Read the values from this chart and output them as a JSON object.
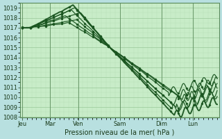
{
  "xlabel": "Pression niveau de la mer( hPa )",
  "bg_color": "#b8e0e0",
  "plot_bg_color": "#c8ecc8",
  "grid_major_color": "#98c898",
  "grid_minor_color": "#b0d8b0",
  "line_color": "#1a5520",
  "ylim": [
    1008,
    1019.5
  ],
  "yticks": [
    1008,
    1009,
    1010,
    1011,
    1012,
    1013,
    1014,
    1015,
    1016,
    1017,
    1018,
    1019
  ],
  "day_labels": [
    "Jeu",
    "Mar",
    "Ven",
    "Sam",
    "Dim",
    "Lun"
  ],
  "day_positions": [
    0.0,
    0.143,
    0.286,
    0.5,
    0.714,
    0.875
  ],
  "num_lines": 7,
  "xlabel_fontsize": 7,
  "tick_fontsize": 6
}
